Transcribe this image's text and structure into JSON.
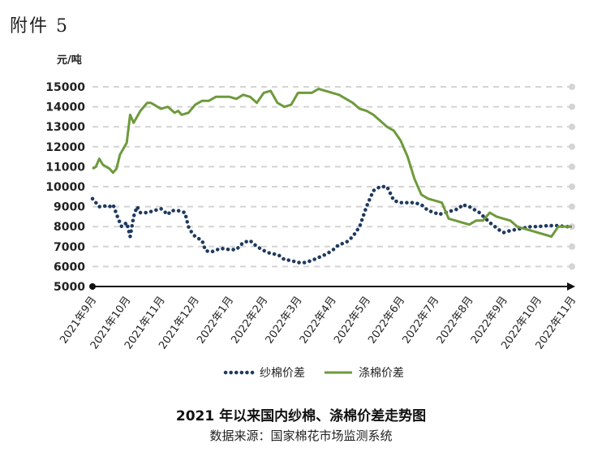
{
  "header": {
    "attachment": "附件 5"
  },
  "chart_data": {
    "type": "line",
    "title": "2021 年以来国内纱棉、涤棉价差走势图",
    "source": "数据来源：国家棉花市场监测系统",
    "ylabel": "元/吨",
    "xlabel": "",
    "ylim": [
      5000,
      15000
    ],
    "yticks": [
      5000,
      6000,
      7000,
      8000,
      9000,
      10000,
      11000,
      12000,
      13000,
      14000,
      15000
    ],
    "x_start": "2021年9月",
    "x_end": "2022年11月",
    "categories": [
      "2021年9月",
      "2021年10月",
      "2021年11月",
      "2021年12月",
      "2022年1月",
      "2022年2月",
      "2022年3月",
      "2022年4月",
      "2022年5月",
      "2022年6月",
      "2022年7月",
      "2022年8月",
      "2022年9月",
      "2022年10月",
      "2022年11月"
    ],
    "grid": true,
    "legend_position": "bottom",
    "colors": {
      "yarn": "#1f3a5f",
      "polyester": "#6e9a3c"
    },
    "series": [
      {
        "name": "纱棉价差",
        "style": "dotted",
        "x": [
          0,
          0.1,
          0.2,
          0.3,
          0.4,
          0.5,
          0.6,
          0.75,
          0.85,
          1.0,
          1.1,
          1.2,
          1.3,
          1.4,
          1.5,
          1.6,
          1.8,
          2.0,
          2.2,
          2.3,
          2.5,
          2.7,
          2.8,
          2.9,
          3.0,
          3.1,
          3.2,
          3.3,
          3.4,
          3.5,
          3.6,
          3.7,
          3.8,
          4.0,
          4.2,
          4.4,
          4.6,
          4.8,
          5.0,
          5.2,
          5.4,
          5.5,
          5.6,
          5.8,
          6.0,
          6.2,
          6.4,
          6.6,
          6.8,
          7.0,
          7.2,
          7.4,
          7.6,
          7.8,
          8.0,
          8.2,
          8.4,
          8.6,
          8.8,
          9.0,
          9.2,
          9.4,
          9.6,
          9.8,
          10.0,
          10.1,
          10.3,
          10.5,
          10.7,
          10.8,
          11.0,
          11.3,
          11.6,
          11.9,
          12.0,
          12.2,
          12.5,
          12.8,
          13.0,
          13.3,
          13.6,
          13.8,
          14.0
        ],
        "values": [
          9400,
          9200,
          9000,
          9000,
          9050,
          9000,
          9100,
          8400,
          8000,
          8200,
          7500,
          8500,
          9000,
          8700,
          8700,
          8700,
          8800,
          8900,
          8600,
          8800,
          8800,
          8700,
          8000,
          7700,
          7500,
          7400,
          7300,
          6800,
          6750,
          6750,
          6800,
          6900,
          6900,
          6850,
          6850,
          7200,
          7300,
          7000,
          6800,
          6650,
          6600,
          6500,
          6350,
          6300,
          6200,
          6200,
          6300,
          6450,
          6600,
          6800,
          7100,
          7200,
          7500,
          8000,
          9000,
          9800,
          10000,
          10000,
          9300,
          9200,
          9200,
          9200,
          9100,
          8800,
          8700,
          8600,
          8700,
          8800,
          8900,
          9100,
          9000,
          8700,
          8200,
          7800,
          7700,
          7800,
          7900,
          8000,
          8000,
          8050,
          8050,
          8000,
          8000
        ]
      },
      {
        "name": "涤棉价差",
        "style": "solid",
        "x": [
          0,
          0.1,
          0.2,
          0.3,
          0.4,
          0.5,
          0.6,
          0.7,
          0.8,
          0.9,
          1.0,
          1.1,
          1.2,
          1.3,
          1.4,
          1.5,
          1.6,
          1.7,
          1.8,
          2.0,
          2.2,
          2.4,
          2.5,
          2.6,
          2.8,
          3.0,
          3.2,
          3.4,
          3.6,
          3.8,
          4.0,
          4.2,
          4.4,
          4.6,
          4.8,
          5.0,
          5.2,
          5.4,
          5.6,
          5.8,
          6.0,
          6.2,
          6.4,
          6.6,
          6.8,
          7.0,
          7.2,
          7.4,
          7.6,
          7.8,
          8.0,
          8.2,
          8.4,
          8.6,
          8.8,
          9.0,
          9.2,
          9.4,
          9.6,
          9.8,
          10.0,
          10.2,
          10.4,
          10.6,
          10.8,
          11.0,
          11.2,
          11.4,
          11.6,
          11.8,
          12.0,
          12.2,
          12.4,
          12.6,
          12.8,
          13.0,
          13.2,
          13.4,
          13.6,
          13.8,
          14.0
        ],
        "values": [
          10900,
          11000,
          11400,
          11100,
          11000,
          10900,
          10700,
          10900,
          11600,
          11900,
          12200,
          13600,
          13200,
          13500,
          13800,
          14000,
          14200,
          14200,
          14100,
          13900,
          14000,
          13700,
          13800,
          13600,
          13700,
          14100,
          14300,
          14300,
          14500,
          14500,
          14500,
          14400,
          14600,
          14500,
          14200,
          14700,
          14800,
          14200,
          14000,
          14100,
          14700,
          14700,
          14700,
          14900,
          14800,
          14700,
          14600,
          14400,
          14200,
          13900,
          13800,
          13600,
          13300,
          13000,
          12800,
          12300,
          11500,
          10400,
          9600,
          9400,
          9300,
          9200,
          8400,
          8300,
          8200,
          8100,
          8300,
          8300,
          8700,
          8500,
          8400,
          8300,
          8000,
          7900,
          7800,
          7700,
          7600,
          7500,
          8000,
          8000,
          8000
        ]
      }
    ]
  }
}
